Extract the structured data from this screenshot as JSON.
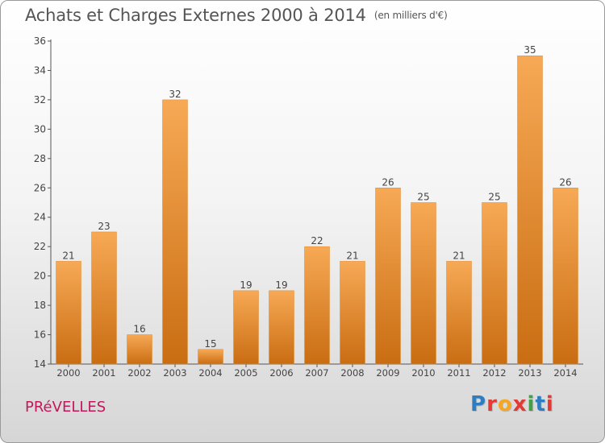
{
  "title": "Achats et Charges Externes 2000 à 2014",
  "unit_note": "(en milliers d'€)",
  "commune": "PRéVELLES",
  "logo": {
    "text": "Proxiti",
    "letters": [
      "P",
      "r",
      "o",
      "x",
      "i",
      "t",
      "i"
    ],
    "colors": [
      "#2e7dc1",
      "#e53935",
      "#f5a623",
      "#e53935",
      "#43a047",
      "#2e7dc1",
      "#e53935"
    ]
  },
  "colors": {
    "bar_top": "#f7a955",
    "bar_bottom": "#c96d12",
    "title": "#555555",
    "commune": "#c2185b"
  },
  "chart_data": {
    "type": "bar",
    "title": "Achats et Charges Externes 2000 à 2014",
    "xlabel": "",
    "ylabel": "",
    "categories": [
      "2000",
      "2001",
      "2002",
      "2003",
      "2004",
      "2005",
      "2006",
      "2007",
      "2008",
      "2009",
      "2010",
      "2011",
      "2012",
      "2013",
      "2014"
    ],
    "values": [
      21,
      23,
      16,
      32,
      15,
      19,
      19,
      22,
      21,
      26,
      25,
      21,
      25,
      35,
      26
    ],
    "ylim": [
      14,
      36
    ],
    "yticks": [
      14,
      16,
      18,
      20,
      22,
      24,
      26,
      28,
      30,
      32,
      34,
      36
    ],
    "grid": false,
    "legend": "none"
  }
}
